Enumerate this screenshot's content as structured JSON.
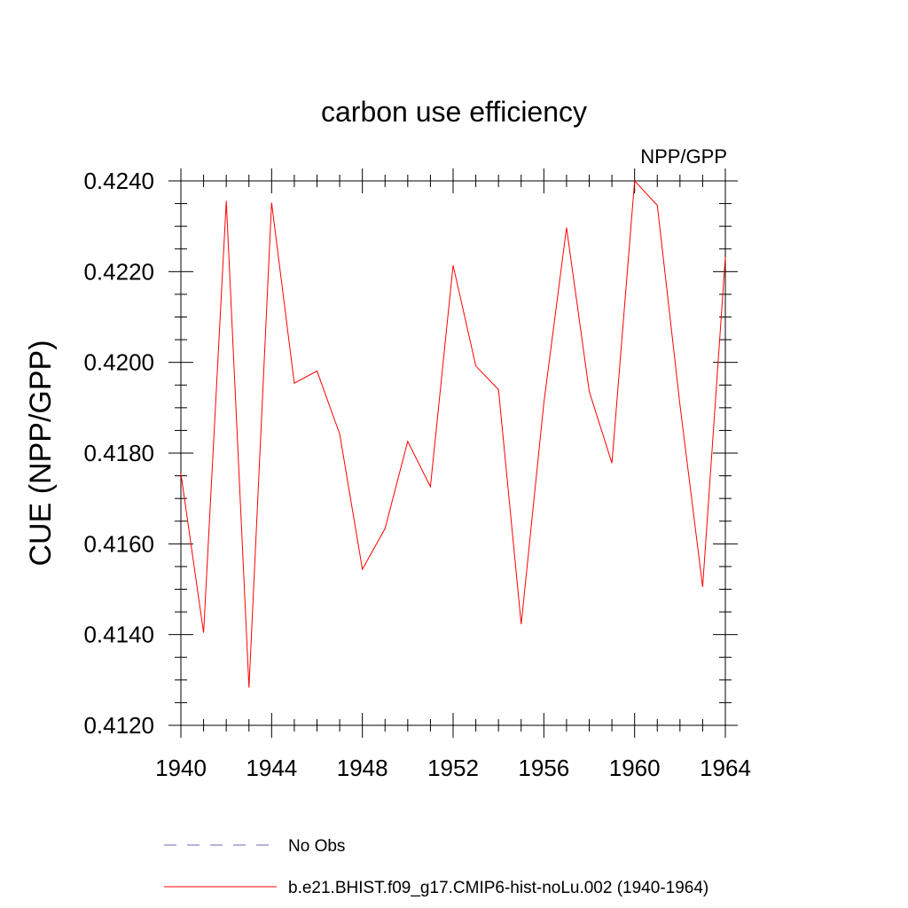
{
  "chart_data": {
    "type": "line",
    "title": "carbon use efficiency",
    "subtitle": "NPP/GPP",
    "ylabel": "CUE  (NPP/GPP)",
    "xlabel": "",
    "xlim": [
      1940,
      1964
    ],
    "ylim": [
      0.412,
      0.424
    ],
    "x_ticks": [
      1940,
      1944,
      1948,
      1952,
      1956,
      1960,
      1964
    ],
    "x_tick_labels": [
      "1940",
      "1944",
      "1948",
      "1952",
      "1956",
      "1960",
      "1964"
    ],
    "y_ticks": [
      0.412,
      0.414,
      0.416,
      0.418,
      0.42,
      0.422,
      0.424
    ],
    "y_tick_labels": [
      "0.4120",
      "0.4140",
      "0.4160",
      "0.4180",
      "0.4200",
      "0.4220",
      "0.4240"
    ],
    "grid": false,
    "legend_placement": "bottom-left",
    "legend": [
      {
        "label": "No Obs",
        "style": "dashed",
        "color": "#6b6bb5"
      },
      {
        "label": "b.e21.BHIST.f09_g17.CMIP6-hist-noLu.002 (1940-1964)",
        "style": "solid",
        "color": "#ff0000"
      }
    ],
    "series": [
      {
        "name": "b.e21.BHIST.f09_g17.CMIP6-hist-noLu.002 (1940-1964)",
        "color": "#ff0000",
        "x": [
          1940,
          1941,
          1942,
          1943,
          1944,
          1945,
          1946,
          1947,
          1948,
          1949,
          1950,
          1951,
          1952,
          1953,
          1954,
          1955,
          1956,
          1957,
          1958,
          1959,
          1960,
          1961,
          1962,
          1963,
          1964
        ],
        "y": [
          0.41755,
          0.41404,
          0.42356,
          0.41283,
          0.42352,
          0.41954,
          0.41981,
          0.41842,
          0.41544,
          0.41634,
          0.41826,
          0.41726,
          0.42214,
          0.41992,
          0.4194,
          0.41423,
          0.4191,
          0.42297,
          0.41936,
          0.41778,
          0.424,
          0.42346,
          0.41907,
          0.41505,
          0.42232
        ]
      }
    ]
  }
}
